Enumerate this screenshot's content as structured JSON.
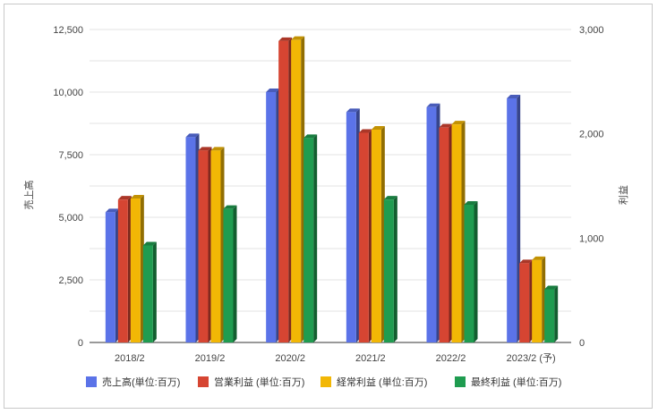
{
  "chart_data": {
    "type": "bar",
    "categories": [
      "2018/2",
      "2019/2",
      "2020/2",
      "2021/2",
      "2022/2",
      "2023/2 (予)"
    ],
    "series": [
      {
        "name": "売上高(単位:百万)",
        "axis": "left",
        "color": "#5b73e8",
        "values": [
          5200,
          8200,
          10000,
          9200,
          9400,
          9750
        ]
      },
      {
        "name": "営業利益 (単位:百万)",
        "axis": "right",
        "color": "#d64532",
        "values": [
          1370,
          1840,
          2890,
          2010,
          2060,
          760
        ]
      },
      {
        "name": "経常利益 (単位:百万)",
        "axis": "right",
        "color": "#f2b705",
        "values": [
          1380,
          1840,
          2900,
          2040,
          2090,
          790
        ]
      },
      {
        "name": "最終利益 (単位:百万)",
        "axis": "right",
        "color": "#1f9c50",
        "values": [
          930,
          1280,
          1960,
          1370,
          1320,
          510
        ]
      }
    ],
    "left_axis": {
      "label": "売上高",
      "min": 0,
      "max": 12500,
      "ticks": [
        "0",
        "2,500",
        "5,000",
        "7,500",
        "10,000",
        "12,500"
      ]
    },
    "right_axis": {
      "label": "利益",
      "min": 0,
      "max": 3000,
      "ticks": [
        "0",
        "1,000",
        "2,000",
        "3,000"
      ]
    },
    "grid": true,
    "legend_position": "bottom"
  }
}
